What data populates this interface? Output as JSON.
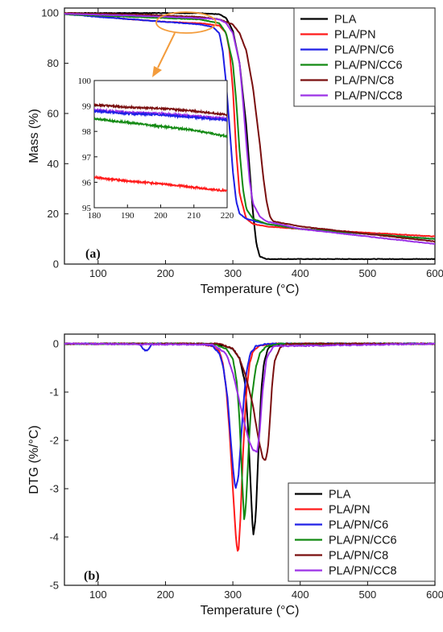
{
  "colors": {
    "PLA": "#000000",
    "PLA/PN": "#ff1a1a",
    "PLA/PN/C6": "#1f1fe6",
    "PLA/PN/CC6": "#138a13",
    "PLA/PN/C8": "#7a0f0f",
    "PLA/PN/CC8": "#9b30e6",
    "callout": "#f39c3c"
  },
  "chart_data": [
    {
      "type": "line",
      "panel_label": "(a)",
      "xlabel": "Temperature (°C)",
      "ylabel": "Mass (%)",
      "xlim": [
        50,
        600
      ],
      "ylim": [
        0,
        102
      ],
      "xticks": [
        100,
        200,
        300,
        400,
        500,
        600
      ],
      "yticks": [
        0,
        20,
        40,
        60,
        80,
        100
      ],
      "legend_position": "top-right",
      "series": [
        {
          "name": "PLA",
          "x": [
            50,
            150,
            250,
            280,
            290,
            300,
            310,
            320,
            330,
            335,
            340,
            350,
            400,
            500,
            600
          ],
          "y": [
            100,
            100,
            100,
            99.5,
            98,
            93,
            80,
            55,
            20,
            8,
            3,
            2,
            2,
            2,
            2
          ]
        },
        {
          "name": "PLA/PN",
          "x": [
            50,
            150,
            200,
            250,
            280,
            290,
            295,
            300,
            305,
            310,
            320,
            330,
            350,
            400,
            500,
            600
          ],
          "y": [
            99.8,
            97.5,
            96.5,
            96,
            95,
            92,
            85,
            70,
            45,
            28,
            18,
            16,
            15,
            14,
            12.5,
            11
          ]
        },
        {
          "name": "PLA/PN/C6",
          "x": [
            50,
            100,
            150,
            200,
            250,
            270,
            280,
            285,
            290,
            295,
            300,
            305,
            310,
            320,
            350,
            400,
            500,
            600
          ],
          "y": [
            99.6,
            98.5,
            97.5,
            96.5,
            95.5,
            94.5,
            92,
            85,
            72,
            55,
            37,
            25,
            20,
            18,
            16,
            14,
            12,
            10
          ]
        },
        {
          "name": "PLA/PN/CC6",
          "x": [
            50,
            150,
            200,
            250,
            280,
            290,
            300,
            305,
            310,
            315,
            320,
            330,
            350,
            400,
            500,
            600
          ],
          "y": [
            99.5,
            98.5,
            98,
            97.5,
            96,
            92,
            80,
            65,
            45,
            30,
            22,
            18,
            16,
            14,
            12,
            10
          ]
        },
        {
          "name": "PLA/PN/C8",
          "x": [
            50,
            150,
            200,
            250,
            280,
            300,
            310,
            320,
            330,
            340,
            345,
            350,
            355,
            360,
            400,
            500,
            600
          ],
          "y": [
            100,
            99.5,
            99,
            98.5,
            97.5,
            95.5,
            92,
            85,
            70,
            48,
            35,
            25,
            19,
            17,
            15,
            12,
            9
          ]
        },
        {
          "name": "PLA/PN/CC8",
          "x": [
            50,
            150,
            200,
            250,
            280,
            290,
            300,
            310,
            315,
            320,
            325,
            330,
            340,
            350,
            400,
            500,
            600
          ],
          "y": [
            99.7,
            99,
            98.5,
            98,
            97.5,
            96,
            92,
            80,
            65,
            48,
            33,
            24,
            19,
            17,
            14,
            11,
            8
          ]
        }
      ],
      "inset": {
        "xlim": [
          180,
          220
        ],
        "ylim": [
          95,
          100
        ],
        "xticks": [
          180,
          190,
          200,
          210,
          220
        ],
        "yticks": [
          95,
          96,
          97,
          98,
          99,
          100
        ],
        "series": [
          {
            "name": "PLA/PN/C8",
            "x": [
              180,
              190,
              200,
              210,
              220
            ],
            "y": [
              99.05,
              98.95,
              98.9,
              98.8,
              98.65
            ]
          },
          {
            "name": "PLA/PN/CC8",
            "x": [
              180,
              190,
              200,
              210,
              220
            ],
            "y": [
              98.85,
              98.75,
              98.7,
              98.6,
              98.5
            ]
          },
          {
            "name": "PLA/PN/C6",
            "x": [
              180,
              190,
              200,
              210,
              220
            ],
            "y": [
              98.8,
              98.7,
              98.65,
              98.55,
              98.45
            ]
          },
          {
            "name": "PLA/PN/CC6",
            "x": [
              180,
              190,
              200,
              210,
              220
            ],
            "y": [
              98.5,
              98.35,
              98.2,
              98.05,
              97.8
            ]
          },
          {
            "name": "PLA/PN",
            "x": [
              180,
              190,
              200,
              210,
              220
            ],
            "y": [
              96.2,
              96.05,
              95.95,
              95.8,
              95.65
            ]
          }
        ]
      }
    },
    {
      "type": "line",
      "panel_label": "(b)",
      "xlabel": "Temperature (°C)",
      "ylabel": "DTG (%/°C)",
      "xlim": [
        50,
        600
      ],
      "ylim": [
        -5,
        0.2
      ],
      "xticks": [
        100,
        200,
        300,
        400,
        500,
        600
      ],
      "yticks": [
        0,
        -1,
        -2,
        -3,
        -4,
        -5
      ],
      "legend_position": "bottom-right",
      "series": [
        {
          "name": "PLA",
          "x": [
            50,
            250,
            280,
            300,
            310,
            318,
            322,
            326,
            330,
            334,
            338,
            342,
            346,
            352,
            360,
            380,
            600
          ],
          "y": [
            0,
            0,
            -0.02,
            -0.1,
            -0.3,
            -0.8,
            -1.6,
            -2.8,
            -4.0,
            -3.6,
            -2.2,
            -1.0,
            -0.4,
            -0.1,
            -0.02,
            0,
            0
          ]
        },
        {
          "name": "PLA/PN",
          "x": [
            50,
            250,
            270,
            280,
            285,
            290,
            295,
            300,
            305,
            308,
            311,
            315,
            320,
            325,
            330,
            340,
            360,
            600
          ],
          "y": [
            0,
            0,
            -0.05,
            -0.15,
            -0.4,
            -0.9,
            -1.8,
            -3.0,
            -4.1,
            -4.35,
            -3.7,
            -2.3,
            -1.0,
            -0.4,
            -0.15,
            -0.03,
            0,
            0
          ]
        },
        {
          "name": "PLA/PN/C6",
          "x": [
            50,
            160,
            168,
            172,
            176,
            180,
            250,
            270,
            280,
            286,
            292,
            297,
            301,
            304,
            308,
            312,
            316,
            320,
            326,
            334,
            350,
            600
          ],
          "y": [
            0,
            0,
            -0.12,
            -0.15,
            -0.1,
            0,
            0,
            -0.05,
            -0.2,
            -0.5,
            -1.1,
            -2.0,
            -2.7,
            -3.0,
            -2.8,
            -2.0,
            -1.2,
            -0.6,
            -0.2,
            -0.05,
            0,
            0
          ]
        },
        {
          "name": "PLA/PN/CC6",
          "x": [
            50,
            270,
            290,
            300,
            306,
            310,
            314,
            317,
            320,
            324,
            328,
            334,
            340,
            350,
            370,
            600
          ],
          "y": [
            0,
            0,
            -0.1,
            -0.3,
            -0.8,
            -1.6,
            -2.9,
            -3.7,
            -3.2,
            -2.0,
            -1.1,
            -0.5,
            -0.2,
            -0.05,
            0,
            0
          ]
        },
        {
          "name": "PLA/PN/C8",
          "x": [
            50,
            280,
            300,
            310,
            320,
            330,
            336,
            340,
            344,
            348,
            352,
            355,
            358,
            362,
            370,
            380,
            600
          ],
          "y": [
            0,
            0,
            -0.1,
            -0.3,
            -0.7,
            -1.3,
            -1.8,
            -2.1,
            -2.35,
            -2.42,
            -2.2,
            -1.6,
            -0.9,
            -0.35,
            -0.08,
            0,
            0
          ]
        },
        {
          "name": "PLA/PN/CC8",
          "x": [
            50,
            270,
            290,
            300,
            310,
            318,
            324,
            330,
            336,
            340,
            344,
            350,
            360,
            600
          ],
          "y": [
            0,
            -0.02,
            -0.2,
            -0.6,
            -1.2,
            -1.7,
            -2.0,
            -2.2,
            -2.25,
            -1.8,
            -1.0,
            -0.3,
            -0.05,
            0
          ]
        }
      ]
    }
  ]
}
